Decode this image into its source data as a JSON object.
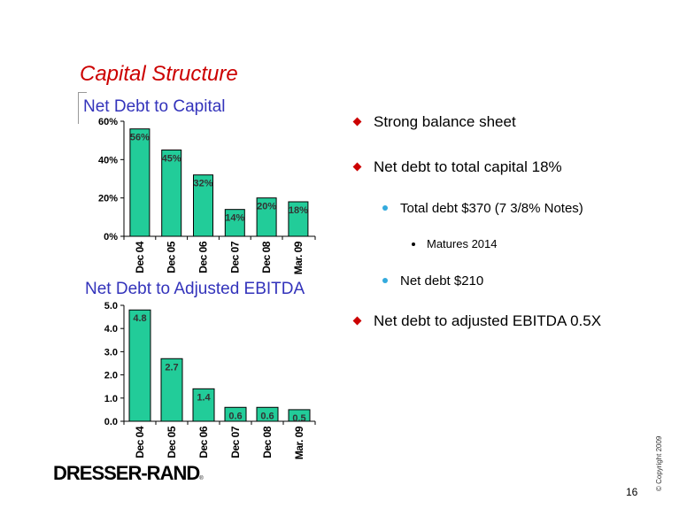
{
  "slide": {
    "title": "Capital Structure",
    "page_number": "16",
    "copyright": "© Copyright 2009",
    "logo_text": "DRESSER-RAND",
    "logo_mark": "®"
  },
  "bullets": [
    {
      "level": 1,
      "text": "Strong balance sheet"
    },
    {
      "level": 1,
      "text": "Net debt to total capital 18%"
    },
    {
      "level": 2,
      "text": "Total debt $370 (7 3/8% Notes)"
    },
    {
      "level": 3,
      "text": "Matures 2014"
    },
    {
      "level": 2,
      "text": "Net debt $210"
    },
    {
      "level": 1,
      "text": "Net debt to adjusted EBITDA 0.5X"
    }
  ],
  "chart_data": [
    {
      "type": "bar",
      "title": "Net Debt to Capital",
      "categories": [
        "Dec 04",
        "Dec 05",
        "Dec 06",
        "Dec 07",
        "Dec 08",
        "Mar. 09"
      ],
      "values": [
        56,
        45,
        32,
        14,
        20,
        18
      ],
      "value_labels": [
        "56%",
        "45%",
        "32%",
        "14%",
        "20%",
        "18%"
      ],
      "yticks": [
        "0%",
        "20%",
        "40%",
        "60%"
      ],
      "ytick_values": [
        0,
        20,
        40,
        60
      ],
      "ylim": [
        0,
        60
      ],
      "grid": false,
      "legend": "none",
      "bar_color": "#22cc99"
    },
    {
      "type": "bar",
      "title": "Net Debt to Adjusted EBITDA",
      "categories": [
        "Dec 04",
        "Dec 05",
        "Dec 06",
        "Dec 07",
        "Dec 08",
        "Mar. 09"
      ],
      "values": [
        4.8,
        2.7,
        1.4,
        0.6,
        0.6,
        0.5
      ],
      "value_labels": [
        "4.8",
        "2.7",
        "1.4",
        "0.6",
        "0.6",
        "0.5"
      ],
      "yticks": [
        "0.0",
        "1.0",
        "2.0",
        "3.0",
        "4.0",
        "5.0"
      ],
      "ytick_values": [
        0,
        1,
        2,
        3,
        4,
        5
      ],
      "ylim": [
        0,
        5
      ],
      "grid": false,
      "legend": "none",
      "bar_color": "#22cc99"
    }
  ]
}
